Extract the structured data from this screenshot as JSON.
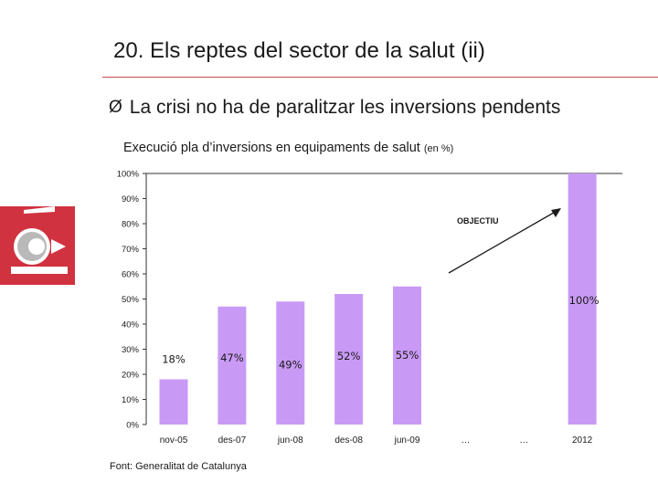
{
  "slide": {
    "title": "20. Els reptes del sector de la salut (ii)",
    "bullet_symbol": "Ø",
    "bullet_text": "La crisi no ha de paralitzar les inversions pendents",
    "chart_title": "Execució pla d’inversions en equipaments de salut",
    "chart_unit": "(en %)",
    "source": "Font: Generalitat de Catalunya",
    "logo_icon": "generalitat-logo-icon",
    "colors": {
      "accent": "#c0504d",
      "bar": "#c99af5",
      "logo_bg": "#d0323f"
    }
  },
  "chart_data": {
    "type": "bar",
    "categories": [
      "nov-05",
      "des-07",
      "jun-08",
      "des-08",
      "jun-09",
      "…",
      "…",
      "2012"
    ],
    "values": [
      18,
      47,
      49,
      52,
      55,
      null,
      null,
      100
    ],
    "data_labels": [
      "18%",
      "47%",
      "49%",
      "52%",
      "55%",
      "",
      "",
      "100%"
    ],
    "ylim": [
      0,
      100
    ],
    "yticks": [
      0,
      10,
      20,
      30,
      40,
      50,
      60,
      70,
      80,
      90,
      100
    ],
    "ytick_labels": [
      "0%",
      "10%",
      "20%",
      "30%",
      "40%",
      "50%",
      "60%",
      "70%",
      "80%",
      "90%",
      "100%"
    ],
    "annotation": "OBJECTIU",
    "grid": false
  }
}
